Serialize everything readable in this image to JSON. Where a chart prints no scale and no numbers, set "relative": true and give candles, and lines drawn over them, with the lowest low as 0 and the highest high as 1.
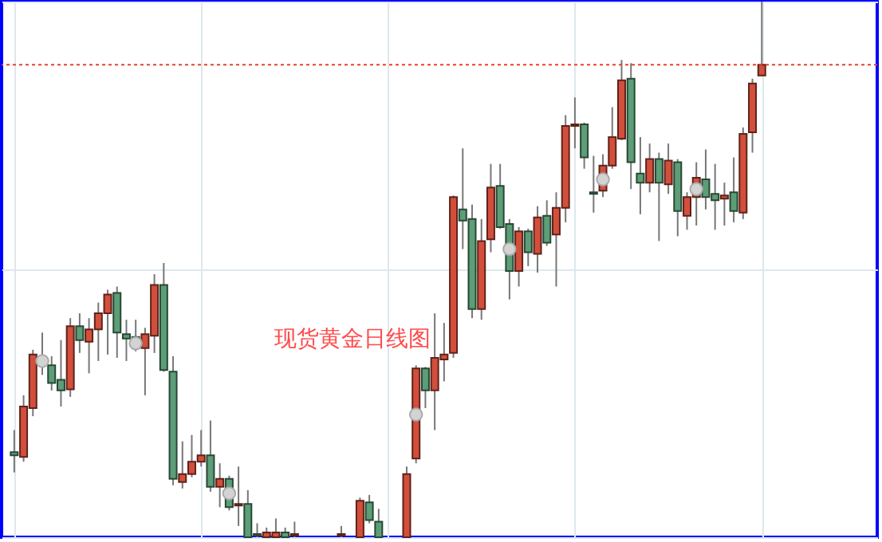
{
  "chart_data": {
    "type": "candlestick",
    "title": "现货黄金日线图",
    "relative": true,
    "grid": true,
    "categories": [
      null,
      null,
      null,
      null,
      null,
      null,
      null,
      null,
      null,
      null,
      null,
      null,
      null,
      null,
      null,
      null,
      null,
      null,
      null,
      null,
      null,
      null,
      null,
      null,
      null,
      null,
      null,
      null,
      null,
      null,
      null,
      null,
      null,
      null,
      null,
      null,
      null,
      null,
      null,
      null,
      null,
      null,
      null,
      null,
      null,
      null,
      null,
      null,
      null,
      null,
      null,
      null,
      null,
      null,
      null,
      null,
      null,
      null,
      null,
      null,
      null,
      null,
      null,
      null,
      null,
      null,
      null,
      null,
      null,
      null,
      null,
      null,
      null,
      null,
      null,
      null,
      null,
      null,
      null,
      null,
      null,
      null,
      null,
      null,
      null,
      null,
      null,
      null,
      null,
      null,
      null,
      null
    ],
    "ohlc": [
      [
        0.159,
        0.2,
        0.121,
        0.153
      ],
      [
        0.15,
        0.265,
        0.141,
        0.244
      ],
      [
        0.241,
        0.35,
        0.226,
        0.341
      ],
      [
        0.332,
        0.382,
        0.303,
        0.326
      ],
      [
        0.321,
        0.338,
        0.274,
        0.288
      ],
      [
        0.294,
        0.368,
        0.244,
        0.274
      ],
      [
        0.276,
        0.409,
        0.262,
        0.394
      ],
      [
        0.394,
        0.418,
        0.344,
        0.368
      ],
      [
        0.365,
        0.409,
        0.306,
        0.388
      ],
      [
        0.388,
        0.438,
        0.329,
        0.418
      ],
      [
        0.418,
        0.462,
        0.341,
        0.453
      ],
      [
        0.456,
        0.468,
        0.335,
        0.382
      ],
      [
        0.379,
        0.406,
        0.329,
        0.371
      ],
      [
        0.374,
        0.406,
        0.347,
        0.356
      ],
      [
        0.353,
        0.391,
        0.265,
        0.379
      ],
      [
        0.376,
        0.491,
        0.344,
        0.471
      ],
      [
        0.471,
        0.512,
        0.309,
        0.312
      ],
      [
        0.309,
        0.338,
        0.097,
        0.109
      ],
      [
        0.103,
        0.179,
        0.091,
        0.118
      ],
      [
        0.118,
        0.191,
        0.112,
        0.141
      ],
      [
        0.141,
        0.2,
        0.132,
        0.153
      ],
      [
        0.153,
        0.218,
        0.085,
        0.094
      ],
      [
        0.094,
        0.138,
        0.056,
        0.109
      ],
      [
        0.109,
        0.115,
        0.05,
        0.056
      ],
      [
        0.059,
        0.132,
        0.021,
        0.062
      ],
      [
        0.062,
        0.088,
        0,
        0
      ],
      [
        0.006,
        0.026,
        0,
        0.003
      ],
      [
        0,
        0.018,
        0,
        0.009
      ],
      [
        0,
        0.035,
        0,
        0.009
      ],
      [
        0.009,
        0.018,
        0,
        0
      ],
      [
        0.003,
        0.029,
        0,
        0.006
      ],
      null,
      null,
      null,
      null,
      [
        0.003,
        0.021,
        0,
        0.006
      ],
      null,
      [
        0,
        0.074,
        0,
        0.068
      ],
      [
        0.065,
        0.079,
        0.026,
        0.032
      ],
      [
        0.029,
        0.053,
        0,
        0
      ],
      null,
      null,
      [
        0,
        0.132,
        0,
        0.118
      ],
      [
        0.147,
        0.321,
        0.138,
        0.315
      ],
      [
        0.315,
        0.318,
        0.241,
        0.274
      ],
      [
        0.274,
        0.418,
        0.2,
        0.335
      ],
      [
        0.332,
        0.4,
        0.291,
        0.341
      ],
      [
        0.344,
        0.638,
        0.335,
        0.635
      ],
      [
        0.612,
        0.726,
        0.538,
        0.591
      ],
      [
        0.594,
        0.621,
        0.409,
        0.426
      ],
      [
        0.426,
        0.594,
        0.406,
        0.553
      ],
      [
        0.556,
        0.697,
        0.532,
        0.653
      ],
      [
        0.656,
        0.697,
        0.576,
        0.579
      ],
      [
        0.585,
        0.594,
        0.444,
        0.497
      ],
      [
        0.497,
        0.579,
        0.468,
        0.571
      ],
      [
        0.571,
        0.576,
        0.506,
        0.532
      ],
      [
        0.529,
        0.618,
        0.494,
        0.597
      ],
      [
        0.6,
        0.629,
        0.544,
        0.55
      ],
      [
        0.565,
        0.644,
        0.468,
        0.615
      ],
      [
        0.615,
        0.788,
        0.588,
        0.768
      ],
      [
        0.768,
        0.821,
        0.726,
        0.771
      ],
      [
        0.771,
        0.774,
        0.688,
        0.709
      ],
      [
        0.644,
        0.712,
        0.606,
        0.641
      ],
      [
        0.647,
        0.715,
        0.635,
        0.694
      ],
      [
        0.694,
        0.803,
        0.688,
        0.747
      ],
      [
        0.744,
        0.891,
        0.741,
        0.853
      ],
      [
        0.856,
        0.885,
        0.65,
        0.7
      ],
      [
        0.679,
        0.747,
        0.603,
        0.662
      ],
      [
        0.662,
        0.735,
        0.644,
        0.706
      ],
      [
        0.706,
        0.718,
        0.553,
        0.662
      ],
      [
        0.659,
        0.735,
        0.641,
        0.703
      ],
      [
        0.7,
        0.706,
        0.562,
        0.609
      ],
      [
        0.6,
        0.644,
        0.574,
        0.635
      ],
      [
        0.635,
        0.7,
        0.582,
        0.671
      ],
      [
        0.668,
        0.724,
        0.612,
        0.635
      ],
      [
        0.641,
        0.697,
        0.574,
        0.629
      ],
      [
        0.632,
        0.662,
        0.582,
        0.638
      ],
      [
        0.644,
        0.709,
        0.588,
        0.609
      ],
      [
        0.606,
        0.765,
        0.594,
        0.753
      ],
      [
        0.756,
        0.856,
        0.718,
        0.847
      ],
      [
        0.862,
        1,
        0.862,
        0.882
      ],
      null,
      null,
      null,
      null,
      null,
      null,
      null,
      null,
      null,
      null,
      null
    ],
    "colors": [
      "#5c9e77",
      "#d24f3c",
      "#d24f3c",
      "#5c9e77",
      "#5c9e77",
      "#5c9e77",
      "#d24f3c",
      "#5c9e77",
      "#d24f3c",
      "#d24f3c",
      "#d24f3c",
      "#5c9e77",
      "#5c9e77",
      "#5c9e77",
      "#d24f3c",
      "#d24f3c",
      "#5c9e77",
      "#5c9e77",
      "#d24f3c",
      "#d24f3c",
      "#d24f3c",
      "#5c9e77",
      "#d24f3c",
      "#5c9e77",
      "#d24f3c",
      "#5c9e77",
      "#5c9e77",
      "#d24f3c",
      "#d24f3c",
      "#5c9e77",
      "#d24f3c",
      null,
      null,
      null,
      null,
      "#d24f3c",
      null,
      "#d24f3c",
      "#5c9e77",
      "#5c9e77",
      null,
      null,
      "#d24f3c",
      "#d24f3c",
      "#5c9e77",
      "#d24f3c",
      "#d24f3c",
      "#d24f3c",
      "#5c9e77",
      "#5c9e77",
      "#d24f3c",
      "#d24f3c",
      "#5c9e77",
      "#5c9e77",
      "#d24f3c",
      "#5c9e77",
      "#d24f3c",
      "#5c9e77",
      "#d24f3c",
      "#d24f3c",
      "#d24f3c",
      "#5c9e77",
      "#5c9e77",
      "#d24f3c",
      "#d24f3c",
      "#d24f3c",
      "#5c9e77",
      "#5c9e77",
      "#d24f3c",
      "#5c9e77",
      "#d24f3c",
      "#5c9e77",
      "#d24f3c",
      "#d24f3c",
      "#5c9e77",
      "#5c9e77",
      "#d24f3c",
      "#5c9e77",
      "#d24f3c",
      "#d24f3c",
      "#d24f3c",
      null,
      null,
      null,
      null,
      null,
      null,
      null,
      null,
      null,
      null,
      null
    ],
    "series": [
      {
        "type": "scatter",
        "marker": "circle",
        "color": "#d3d3d3",
        "values": [
          null,
          null,
          null,
          0.329,
          null,
          null,
          null,
          null,
          null,
          null,
          null,
          null,
          null,
          0.362,
          null,
          null,
          null,
          null,
          null,
          null,
          null,
          null,
          null,
          0.082,
          null,
          null,
          null,
          null,
          null,
          null,
          null,
          null,
          null,
          null,
          null,
          null,
          null,
          null,
          null,
          null,
          null,
          null,
          null,
          0.229,
          null,
          null,
          null,
          null,
          null,
          null,
          null,
          null,
          null,
          0.538,
          null,
          null,
          null,
          null,
          null,
          null,
          null,
          null,
          null,
          0.668,
          null,
          null,
          null,
          null,
          null,
          null,
          null,
          null,
          null,
          0.65,
          null,
          null,
          null,
          null,
          null,
          null,
          null,
          null,
          null,
          null,
          null,
          null,
          null,
          null,
          null,
          null,
          null,
          null
        ]
      }
    ],
    "ref_lines": [
      {
        "axis": "y",
        "value": 0.882,
        "color": "#e8412c",
        "line_style": "dotted"
      }
    ]
  }
}
